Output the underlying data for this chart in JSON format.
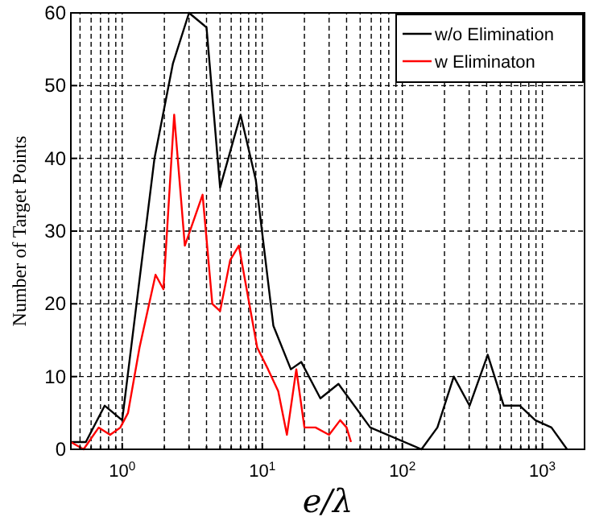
{
  "chart_data": {
    "type": "line",
    "xlabel": "e/λ",
    "ylabel": "Number of Target Points",
    "log": "x",
    "grid": true,
    "legend": "top right",
    "marker": "none",
    "line_style": "solid",
    "xlim": [
      0.43,
      2000
    ],
    "ylim": [
      0,
      60
    ],
    "xticks": [
      {
        "value": 0.5,
        "label": null
      },
      {
        "value": 0.6,
        "label": null
      },
      {
        "value": 0.7,
        "label": null
      },
      {
        "value": 0.8,
        "label": null
      },
      {
        "value": 0.9,
        "label": null
      },
      {
        "value": 1,
        "label": "10$^{0}$"
      },
      {
        "value": 2,
        "label": null
      },
      {
        "value": 3,
        "label": null
      },
      {
        "value": 4,
        "label": null
      },
      {
        "value": 5,
        "label": null
      },
      {
        "value": 6,
        "label": null
      },
      {
        "value": 7,
        "label": null
      },
      {
        "value": 8,
        "label": null
      },
      {
        "value": 9,
        "label": null
      },
      {
        "value": 10,
        "label": "10$^{1}$"
      },
      {
        "value": 20,
        "label": null
      },
      {
        "value": 30,
        "label": null
      },
      {
        "value": 40,
        "label": null
      },
      {
        "value": 50,
        "label": null
      },
      {
        "value": 60,
        "label": null
      },
      {
        "value": 70,
        "label": null
      },
      {
        "value": 80,
        "label": null
      },
      {
        "value": 90,
        "label": null
      },
      {
        "value": 100,
        "label": "10$^{2}$"
      },
      {
        "value": 200,
        "label": null
      },
      {
        "value": 300,
        "label": null
      },
      {
        "value": 400,
        "label": null
      },
      {
        "value": 500,
        "label": null
      },
      {
        "value": 600,
        "label": null
      },
      {
        "value": 700,
        "label": null
      },
      {
        "value": 800,
        "label": null
      },
      {
        "value": 900,
        "label": null
      },
      {
        "value": 1000,
        "label": "10$^{3}$"
      }
    ],
    "yticks": [
      0,
      10,
      20,
      30,
      40,
      50,
      60
    ],
    "series": [
      {
        "name": "w/o Elimination",
        "color": "#000000",
        "x": [
          0.43,
          0.55,
          0.75,
          1.0,
          1.7,
          2.3,
          3.0,
          4.0,
          5.0,
          7.0,
          9.0,
          12,
          16,
          19,
          26,
          35,
          59,
          137,
          178,
          233,
          302,
          407,
          530,
          690,
          890,
          1160,
          1500
        ],
        "values": [
          1,
          1,
          6,
          4,
          40,
          53,
          60,
          58,
          36,
          46,
          37,
          17,
          11,
          12,
          7,
          9,
          3,
          0,
          3,
          10,
          6,
          13,
          6,
          6,
          4,
          3,
          0
        ]
      },
      {
        "name": "w Eliminaton",
        "color": "#ff0000",
        "x": [
          0.43,
          0.53,
          0.68,
          0.82,
          0.97,
          1.1,
          1.33,
          1.73,
          1.97,
          2.35,
          2.8,
          3.75,
          4.4,
          5.0,
          5.9,
          6.8,
          9.2,
          11,
          13,
          15,
          17.5,
          20,
          24,
          30,
          36,
          40,
          43
        ],
        "values": [
          1,
          0,
          3,
          2,
          3,
          5,
          14,
          24,
          22,
          46,
          28,
          35,
          20,
          19,
          26,
          28,
          14,
          11,
          8,
          2,
          11,
          3,
          3,
          2,
          4,
          3,
          1
        ]
      }
    ]
  }
}
